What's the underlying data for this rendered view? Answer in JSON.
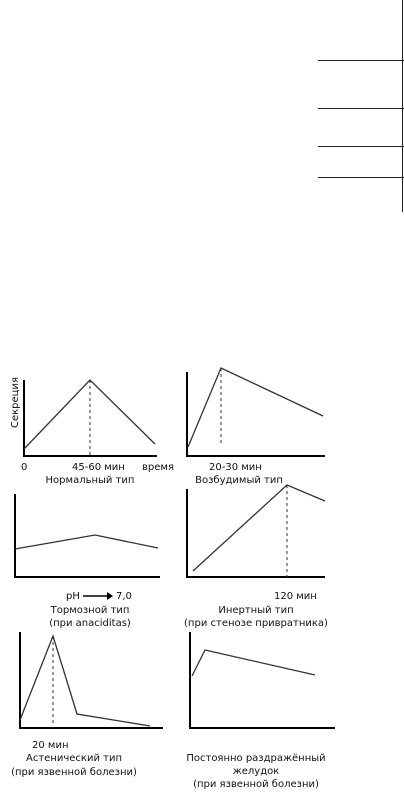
{
  "ylabel": "Секреция",
  "panels": [
    {
      "title": "Нормальный тип",
      "subtitle": "",
      "ticks": [
        "0",
        "45-60 мин",
        "время"
      ]
    },
    {
      "title": "Возбудимый тип",
      "subtitle": "",
      "ticks": [
        "20-30 мин"
      ]
    },
    {
      "title": "Тормозной тип",
      "subtitle": "(при anaciditas)",
      "ticks": [
        "pH",
        "7,0"
      ]
    },
    {
      "title": "Инертный тип",
      "subtitle": "(при стенозе привратника)",
      "ticks": [
        "120 мин"
      ]
    },
    {
      "title": "Астенический тип",
      "subtitle": "(при язвенной болезни)",
      "ticks": [
        "20 мин"
      ]
    },
    {
      "title": "Постоянно раздражённый",
      "subtitle": "желудок",
      "subtitle2": "(при язвенной болезни)",
      "ticks": []
    }
  ]
}
